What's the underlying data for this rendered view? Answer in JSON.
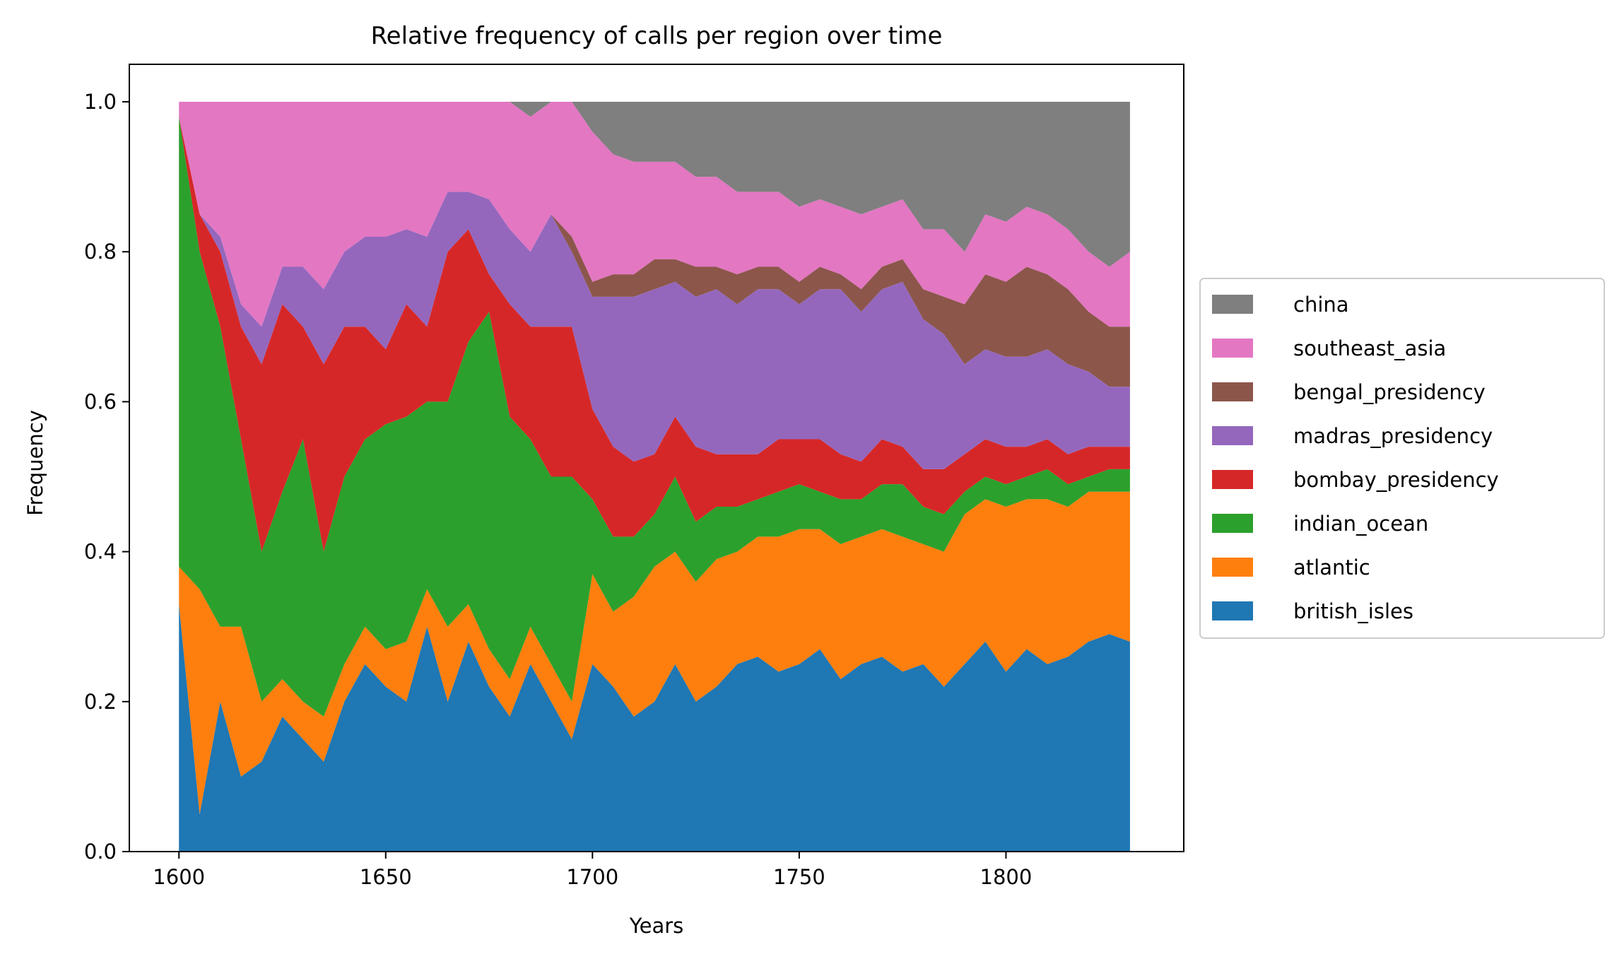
{
  "chart_data": {
    "type": "area",
    "stacked": true,
    "normalized": true,
    "title": "Relative frequency of calls per region over time",
    "xlabel": "Years",
    "ylabel": "Frequency",
    "xlim": [
      1588,
      1843
    ],
    "ylim": [
      0,
      1.05
    ],
    "xticks": [
      1600,
      1650,
      1700,
      1750,
      1800
    ],
    "yticks": [
      0.0,
      0.2,
      0.4,
      0.6,
      0.8,
      1.0
    ],
    "ytick_labels": [
      "0.0",
      "0.2",
      "0.4",
      "0.6",
      "0.8",
      "1.0"
    ],
    "legend_position": "center-right outside plot",
    "x": [
      1600,
      1605,
      1610,
      1615,
      1620,
      1625,
      1630,
      1635,
      1640,
      1645,
      1650,
      1655,
      1660,
      1665,
      1670,
      1675,
      1680,
      1685,
      1690,
      1695,
      1700,
      1705,
      1710,
      1715,
      1720,
      1725,
      1730,
      1735,
      1740,
      1745,
      1750,
      1755,
      1760,
      1765,
      1770,
      1775,
      1780,
      1785,
      1790,
      1795,
      1800,
      1805,
      1810,
      1815,
      1820,
      1825,
      1830
    ],
    "series": [
      {
        "name": "british_isles",
        "color": "#1f77b4",
        "values": [
          0.33,
          0.05,
          0.2,
          0.1,
          0.12,
          0.18,
          0.15,
          0.12,
          0.2,
          0.25,
          0.22,
          0.2,
          0.3,
          0.2,
          0.28,
          0.22,
          0.18,
          0.25,
          0.2,
          0.15,
          0.25,
          0.22,
          0.18,
          0.2,
          0.25,
          0.2,
          0.22,
          0.25,
          0.26,
          0.24,
          0.25,
          0.27,
          0.23,
          0.25,
          0.26,
          0.24,
          0.25,
          0.22,
          0.25,
          0.28,
          0.24,
          0.27,
          0.25,
          0.26,
          0.28,
          0.29,
          0.28
        ]
      },
      {
        "name": "atlantic",
        "color": "#ff7f0e",
        "values": [
          0.05,
          0.3,
          0.1,
          0.2,
          0.08,
          0.05,
          0.05,
          0.06,
          0.05,
          0.05,
          0.05,
          0.08,
          0.05,
          0.1,
          0.05,
          0.05,
          0.05,
          0.05,
          0.05,
          0.05,
          0.12,
          0.1,
          0.16,
          0.18,
          0.15,
          0.16,
          0.17,
          0.15,
          0.16,
          0.18,
          0.18,
          0.16,
          0.18,
          0.17,
          0.17,
          0.18,
          0.16,
          0.18,
          0.2,
          0.19,
          0.22,
          0.2,
          0.22,
          0.2,
          0.2,
          0.19,
          0.2
        ]
      },
      {
        "name": "indian_ocean",
        "color": "#2ca02c",
        "values": [
          0.6,
          0.45,
          0.4,
          0.25,
          0.2,
          0.25,
          0.35,
          0.22,
          0.25,
          0.25,
          0.3,
          0.3,
          0.25,
          0.3,
          0.35,
          0.45,
          0.35,
          0.25,
          0.25,
          0.3,
          0.1,
          0.1,
          0.08,
          0.07,
          0.1,
          0.08,
          0.07,
          0.06,
          0.05,
          0.06,
          0.06,
          0.05,
          0.06,
          0.05,
          0.06,
          0.07,
          0.05,
          0.05,
          0.03,
          0.03,
          0.03,
          0.03,
          0.04,
          0.03,
          0.02,
          0.03,
          0.03
        ]
      },
      {
        "name": "bombay_presidency",
        "color": "#d62728",
        "values": [
          0.0,
          0.05,
          0.1,
          0.15,
          0.25,
          0.25,
          0.15,
          0.25,
          0.2,
          0.15,
          0.1,
          0.15,
          0.1,
          0.2,
          0.15,
          0.05,
          0.15,
          0.15,
          0.2,
          0.2,
          0.12,
          0.12,
          0.1,
          0.08,
          0.08,
          0.1,
          0.07,
          0.07,
          0.06,
          0.07,
          0.06,
          0.07,
          0.06,
          0.05,
          0.06,
          0.05,
          0.05,
          0.06,
          0.05,
          0.05,
          0.05,
          0.04,
          0.04,
          0.04,
          0.04,
          0.03,
          0.03
        ]
      },
      {
        "name": "madras_presidency",
        "color": "#9467bd",
        "values": [
          0.0,
          0.0,
          0.02,
          0.03,
          0.05,
          0.05,
          0.08,
          0.1,
          0.1,
          0.12,
          0.15,
          0.1,
          0.12,
          0.08,
          0.05,
          0.1,
          0.1,
          0.1,
          0.15,
          0.1,
          0.15,
          0.2,
          0.22,
          0.22,
          0.18,
          0.2,
          0.22,
          0.2,
          0.22,
          0.2,
          0.18,
          0.2,
          0.22,
          0.2,
          0.2,
          0.22,
          0.2,
          0.18,
          0.12,
          0.12,
          0.12,
          0.12,
          0.12,
          0.12,
          0.1,
          0.08,
          0.08
        ]
      },
      {
        "name": "bengal_presidency",
        "color": "#8c564b",
        "values": [
          0.0,
          0.0,
          0.0,
          0.0,
          0.0,
          0.0,
          0.0,
          0.0,
          0.0,
          0.0,
          0.0,
          0.0,
          0.0,
          0.0,
          0.0,
          0.0,
          0.0,
          0.0,
          0.0,
          0.02,
          0.02,
          0.03,
          0.03,
          0.04,
          0.03,
          0.04,
          0.03,
          0.04,
          0.03,
          0.03,
          0.03,
          0.03,
          0.02,
          0.03,
          0.03,
          0.03,
          0.04,
          0.05,
          0.08,
          0.1,
          0.1,
          0.12,
          0.1,
          0.1,
          0.08,
          0.08,
          0.08
        ]
      },
      {
        "name": "southeast_asia",
        "color": "#e377c2",
        "values": [
          0.02,
          0.15,
          0.18,
          0.27,
          0.3,
          0.22,
          0.22,
          0.25,
          0.2,
          0.18,
          0.18,
          0.17,
          0.18,
          0.12,
          0.12,
          0.13,
          0.17,
          0.18,
          0.15,
          0.18,
          0.2,
          0.16,
          0.15,
          0.13,
          0.13,
          0.12,
          0.12,
          0.11,
          0.1,
          0.1,
          0.1,
          0.09,
          0.09,
          0.1,
          0.08,
          0.08,
          0.08,
          0.09,
          0.07,
          0.08,
          0.08,
          0.08,
          0.08,
          0.08,
          0.08,
          0.08,
          0.1
        ]
      },
      {
        "name": "china",
        "color": "#7f7f7f",
        "values": [
          0.0,
          0.0,
          0.0,
          0.0,
          0.0,
          0.0,
          0.0,
          0.0,
          0.0,
          0.0,
          0.0,
          0.0,
          0.0,
          0.0,
          0.0,
          0.0,
          0.0,
          0.02,
          0.0,
          0.0,
          0.04,
          0.07,
          0.08,
          0.08,
          0.08,
          0.1,
          0.1,
          0.12,
          0.12,
          0.12,
          0.14,
          0.13,
          0.14,
          0.15,
          0.14,
          0.13,
          0.17,
          0.17,
          0.2,
          0.15,
          0.16,
          0.14,
          0.15,
          0.17,
          0.2,
          0.22,
          0.2
        ]
      }
    ],
    "legend_order": [
      "china",
      "southeast_asia",
      "bengal_presidency",
      "madras_presidency",
      "bombay_presidency",
      "indian_ocean",
      "atlantic",
      "british_isles"
    ]
  }
}
